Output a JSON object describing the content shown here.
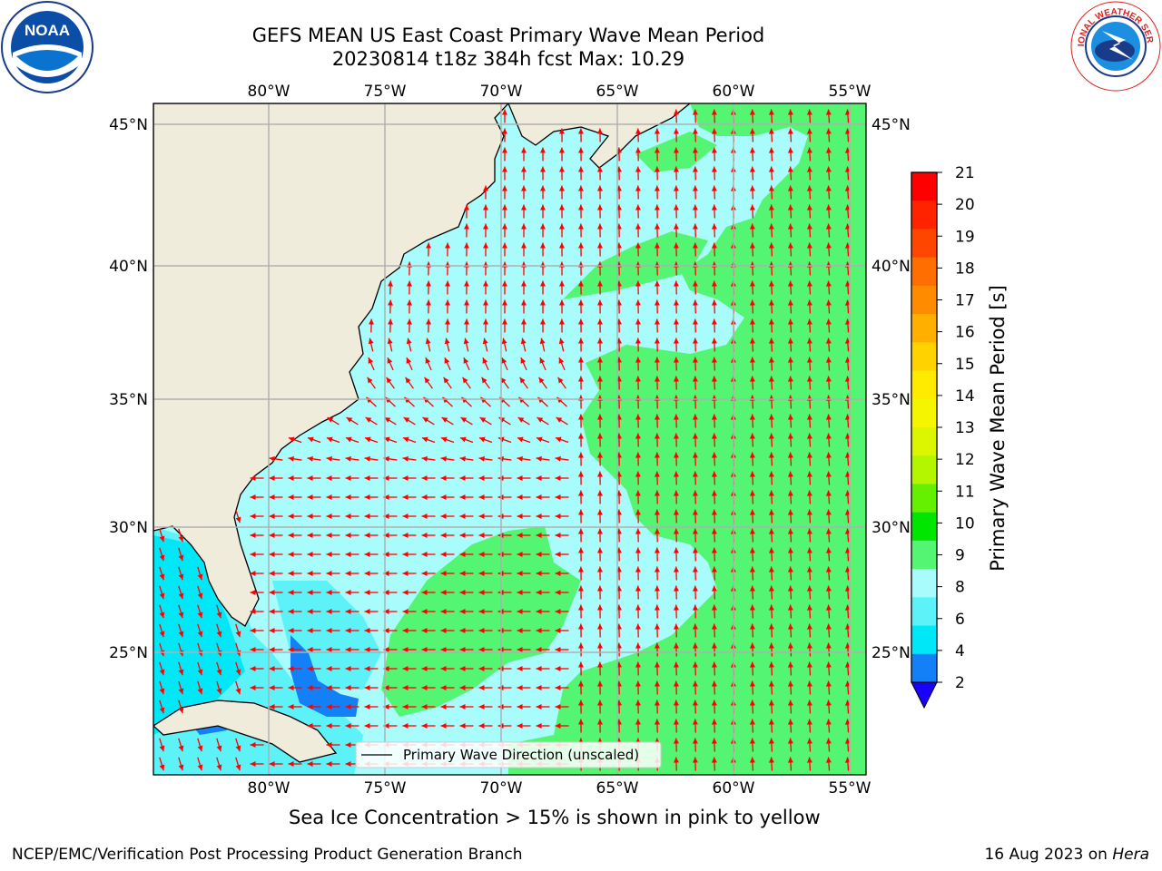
{
  "header": {
    "title_line1": "GEFS MEAN US East Coast Primary Wave Mean Period",
    "title_line2": "20230814 t18z 384h fcst   Max: 10.29"
  },
  "logos": {
    "left": {
      "name": "noaa-logo",
      "text": "NOAA"
    },
    "right": {
      "name": "nws-logo",
      "text": "NATIONAL WEATHER SERVICE"
    }
  },
  "map": {
    "lon_labels": [
      "80°W",
      "75°W",
      "70°W",
      "65°W",
      "60°W",
      "55°W"
    ],
    "lat_labels": [
      "45°N",
      "40°N",
      "35°N",
      "30°N",
      "25°N"
    ],
    "legend_label": "Primary Wave Direction (unscaled)",
    "colors": {
      "land": "#efecdc",
      "ocean_8_9": "#a8fcfc",
      "ocean_9_10": "#54f573",
      "ocean_6_8": "#5cf2f8",
      "ocean_4_6": "#00e8f8",
      "ocean_2_4": "#1380f7",
      "arrow": "#ff0000",
      "grid": "#b0b0b0"
    }
  },
  "colorbar": {
    "label": "Primary Wave Mean Period [s]",
    "ticks": [
      "21",
      "20",
      "19",
      "18",
      "17",
      "16",
      "15",
      "14",
      "13",
      "12",
      "11",
      "10",
      "9",
      "8",
      "6",
      "4",
      "2"
    ],
    "colors": [
      "#ff0000",
      "#ff2300",
      "#ff4600",
      "#ff6e00",
      "#ff8c00",
      "#ffaf00",
      "#ffd200",
      "#ffeb00",
      "#f5f500",
      "#dcf500",
      "#b4f500",
      "#64f000",
      "#00e600",
      "#54f573",
      "#a8fcfc",
      "#5cf2f8",
      "#00e8f8",
      "#1380f7"
    ],
    "under_color": "#1a00ff"
  },
  "footer": {
    "ice_note": "Sea Ice Concentration > 15% is shown in pink to yellow",
    "left": "NCEP/EMC/Verification Post Processing Product Generation Branch",
    "right_prefix": "16 Aug 2023 on ",
    "right_host": "Hera"
  }
}
